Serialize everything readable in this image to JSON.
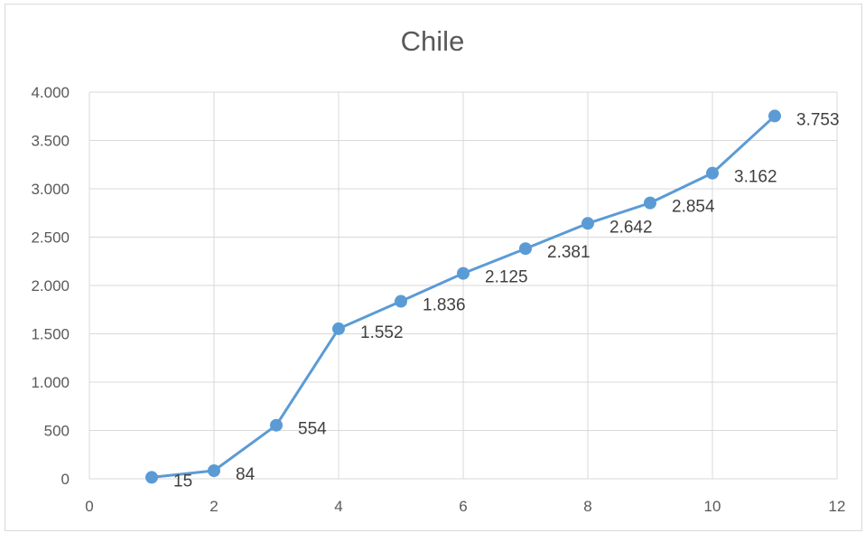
{
  "chart_data": {
    "type": "scatter",
    "title": "Chile",
    "xlabel": "",
    "ylabel": "",
    "xlim": [
      0,
      12
    ],
    "ylim": [
      0,
      4000
    ],
    "x_ticks": [
      0,
      2,
      4,
      6,
      8,
      10,
      12
    ],
    "x_tick_labels": [
      "0",
      "2",
      "4",
      "6",
      "8",
      "10",
      "12"
    ],
    "y_ticks": [
      0,
      500,
      1000,
      1500,
      2000,
      2500,
      3000,
      3500,
      4000
    ],
    "y_tick_labels": [
      "0",
      "500",
      "1.000",
      "1.500",
      "2.000",
      "2.500",
      "3.000",
      "3.500",
      "4.000"
    ],
    "grid": true,
    "legend": "none",
    "color": "#5b9bd5",
    "series": [
      {
        "x": [
          1,
          2,
          3,
          4,
          5,
          6,
          7,
          8,
          9,
          10,
          11
        ],
        "values": [
          15,
          84,
          554,
          1552,
          1836,
          2125,
          2381,
          2642,
          2854,
          3162,
          3753
        ],
        "data_labels": [
          "15",
          "84",
          "554",
          "1.552",
          "1.836",
          "2.125",
          "2.381",
          "2.642",
          "2.854",
          "3.162",
          "3.753"
        ]
      }
    ]
  }
}
